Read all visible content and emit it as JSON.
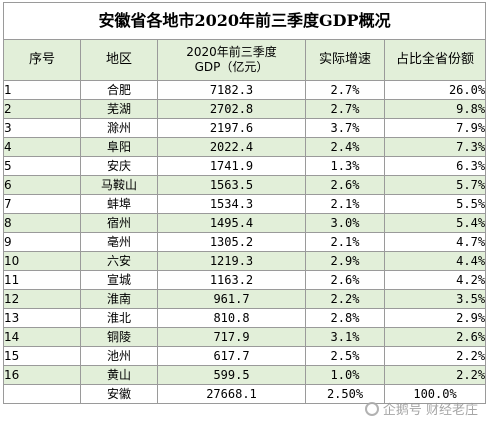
{
  "title": "安徽省各地市2020年前三季度GDP概况",
  "headers": {
    "no": "序号",
    "region": "地区",
    "gdp_line1": "2020年前三季度",
    "gdp_line2": "GDP（亿元）",
    "growth": "实际增速",
    "share": "占比全省份额"
  },
  "rows": [
    {
      "no": "1",
      "region": "合肥",
      "gdp": "7182.3",
      "growth": "2.7%",
      "share": "26.0%"
    },
    {
      "no": "2",
      "region": "芜湖",
      "gdp": "2702.8",
      "growth": "2.7%",
      "share": "9.8%"
    },
    {
      "no": "3",
      "region": "滁州",
      "gdp": "2197.6",
      "growth": "3.7%",
      "share": "7.9%"
    },
    {
      "no": "4",
      "region": "阜阳",
      "gdp": "2022.4",
      "growth": "2.4%",
      "share": "7.3%"
    },
    {
      "no": "5",
      "region": "安庆",
      "gdp": "1741.9",
      "growth": "1.3%",
      "share": "6.3%"
    },
    {
      "no": "6",
      "region": "马鞍山",
      "gdp": "1563.5",
      "growth": "2.6%",
      "share": "5.7%"
    },
    {
      "no": "7",
      "region": "蚌埠",
      "gdp": "1534.3",
      "growth": "2.1%",
      "share": "5.5%"
    },
    {
      "no": "8",
      "region": "宿州",
      "gdp": "1495.4",
      "growth": "3.0%",
      "share": "5.4%"
    },
    {
      "no": "9",
      "region": "亳州",
      "gdp": "1305.2",
      "growth": "2.1%",
      "share": "4.7%"
    },
    {
      "no": "10",
      "region": "六安",
      "gdp": "1219.3",
      "growth": "2.9%",
      "share": "4.4%"
    },
    {
      "no": "11",
      "region": "宣城",
      "gdp": "1163.2",
      "growth": "2.6%",
      "share": "4.2%"
    },
    {
      "no": "12",
      "region": "淮南",
      "gdp": "961.7",
      "growth": "2.2%",
      "share": "3.5%"
    },
    {
      "no": "13",
      "region": "淮北",
      "gdp": "810.8",
      "growth": "2.8%",
      "share": "2.9%"
    },
    {
      "no": "14",
      "region": "铜陵",
      "gdp": "717.9",
      "growth": "3.1%",
      "share": "2.6%"
    },
    {
      "no": "15",
      "region": "池州",
      "gdp": "617.7",
      "growth": "2.5%",
      "share": "2.2%"
    },
    {
      "no": "16",
      "region": "黄山",
      "gdp": "599.5",
      "growth": "1.0%",
      "share": "2.2%"
    }
  ],
  "total": {
    "no": "",
    "region": "安徽",
    "gdp": "27668.1",
    "growth": "2.50%",
    "share": "100.0%"
  },
  "colors": {
    "green_band": "#e2efd9",
    "border": "#9a9a9a"
  },
  "watermark": "企鹅号 财经老庄"
}
